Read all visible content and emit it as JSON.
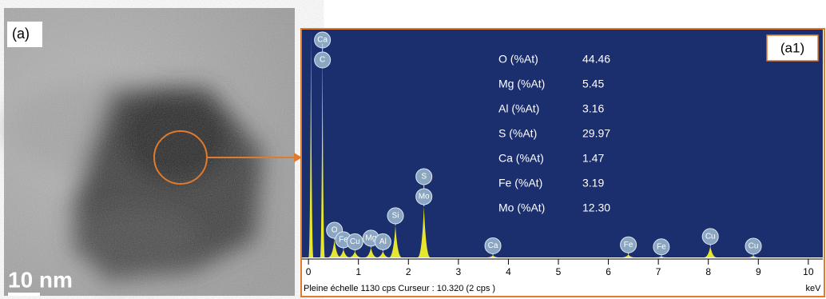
{
  "panel_a": {
    "label": "(a)",
    "scale_bar": "10 nm"
  },
  "chart_data": {
    "type": "spectrum",
    "panel_label": "(a1)",
    "composition": [
      {
        "element": "O  (%At)",
        "value": "44.46"
      },
      {
        "element": "Mg (%At)",
        "value": "5.45"
      },
      {
        "element": "Al  (%At)",
        "value": "3.16"
      },
      {
        "element": "S (%At)",
        "value": "29.97"
      },
      {
        "element": "Ca (%At)",
        "value": "1.47"
      },
      {
        "element": "Fe (%At)",
        "value": "3.19"
      },
      {
        "element": "Mo (%At)",
        "value": "12.30"
      }
    ],
    "peaks": [
      {
        "x": 0.05,
        "y": 1130
      },
      {
        "x": 0.28,
        "y": 1060,
        "labels": [
          "Ca",
          "C"
        ]
      },
      {
        "x": 0.52,
        "y": 87,
        "labels": [
          "O"
        ]
      },
      {
        "x": 0.7,
        "y": 40,
        "labels": [
          "Fe"
        ]
      },
      {
        "x": 0.93,
        "y": 30,
        "labels": [
          "Cu"
        ]
      },
      {
        "x": 1.25,
        "y": 48,
        "labels": [
          "Mg"
        ]
      },
      {
        "x": 1.49,
        "y": 30,
        "labels": [
          "Al"
        ]
      },
      {
        "x": 1.74,
        "y": 159,
        "labels": [
          "Si"
        ]
      },
      {
        "x": 2.31,
        "y": 254,
        "labels": [
          "S",
          "Mo"
        ]
      },
      {
        "x": 3.69,
        "y": 10,
        "labels": [
          "Ca"
        ]
      },
      {
        "x": 6.4,
        "y": 15,
        "labels": [
          "Fe"
        ]
      },
      {
        "x": 7.06,
        "y": 5,
        "labels": [
          "Fe"
        ]
      },
      {
        "x": 8.04,
        "y": 56,
        "labels": [
          "Cu"
        ]
      },
      {
        "x": 8.9,
        "y": 8,
        "labels": [
          "Cu"
        ]
      }
    ],
    "xlim": [
      -0.13,
      10.29
    ],
    "ylim": [
      0,
      1130
    ],
    "xticks": [
      0,
      1,
      2,
      3,
      4,
      5,
      6,
      7,
      8,
      9,
      10
    ],
    "x_unit": "keV",
    "footer": "Pleine échelle 1130 cps  Curseur : 10.320  (2 cps )"
  }
}
